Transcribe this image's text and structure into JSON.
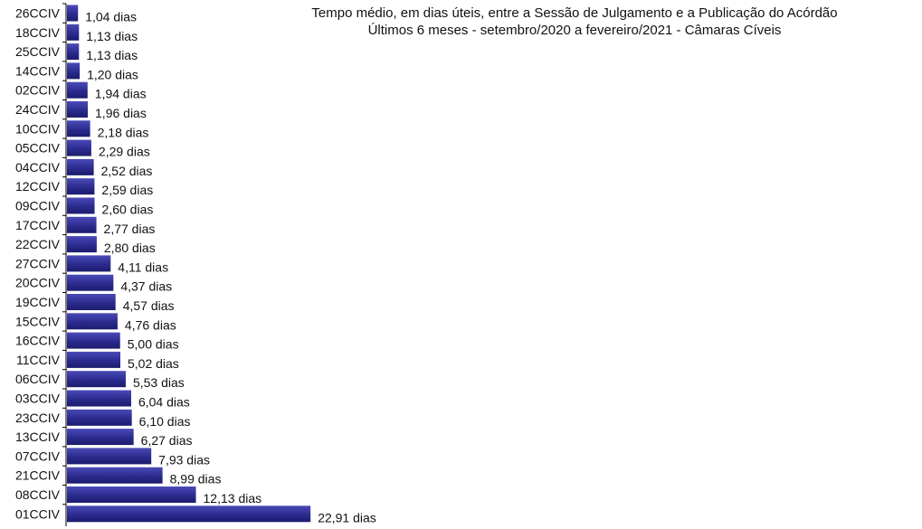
{
  "chart_data": {
    "type": "bar",
    "orientation": "horizontal",
    "title": "Tempo médio, em dias úteis, entre a Sessão de Julgamento  e a Publicação do Acórdão",
    "subtitle": "Últimos 6 meses - setembro/2020 a fevereiro/2021 - Câmaras Cíveis",
    "unit": "dias",
    "bar_color": "#2b2b8f",
    "categories": [
      "26CCIV",
      "18CCIV",
      "25CCIV",
      "14CCIV",
      "02CCIV",
      "24CCIV",
      "10CCIV",
      "05CCIV",
      "04CCIV",
      "12CCIV",
      "09CCIV",
      "17CCIV",
      "22CCIV",
      "27CCIV",
      "20CCIV",
      "19CCIV",
      "15CCIV",
      "16CCIV",
      "11CCIV",
      "06CCIV",
      "03CCIV",
      "23CCIV",
      "13CCIV",
      "07CCIV",
      "21CCIV",
      "08CCIV",
      "01CCIV"
    ],
    "values": [
      1.04,
      1.13,
      1.13,
      1.2,
      1.94,
      1.96,
      2.18,
      2.29,
      2.52,
      2.59,
      2.6,
      2.77,
      2.8,
      4.11,
      4.37,
      4.57,
      4.76,
      5.0,
      5.02,
      5.53,
      6.04,
      6.1,
      6.27,
      7.93,
      8.99,
      12.13,
      22.91
    ],
    "labels": [
      "1,04 dias",
      "1,13 dias",
      "1,13 dias",
      "1,20 dias",
      "1,94 dias",
      "1,96 dias",
      "2,18 dias",
      "2,29 dias",
      "2,52 dias",
      "2,59 dias",
      "2,60 dias",
      "2,77 dias",
      "2,80 dias",
      "4,11 dias",
      "4,37 dias",
      "4,57 dias",
      "4,76 dias",
      "5,00 dias",
      "5,02 dias",
      "5,53 dias",
      "6,04 dias",
      "6,10 dias",
      "6,27 dias",
      "7,93 dias",
      "8,99 dias",
      "12,13 dias",
      "22,91 dias"
    ]
  }
}
